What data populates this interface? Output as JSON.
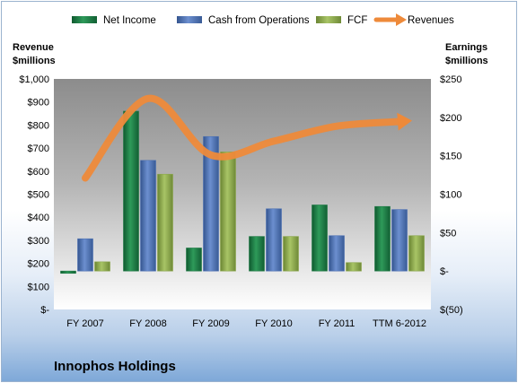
{
  "company_name": "Innophos Holdings",
  "colors": {
    "net_income": "#1e7a45",
    "cash_from_operations": "#4a6fb3",
    "fcf": "#8aa64a",
    "revenues": "#ee8a3a",
    "plot_background_top": "#8c8c8c",
    "plot_background_bottom": "#ffffff"
  },
  "chart_data": {
    "type": "bar",
    "categories": [
      "FY 2007",
      "FY 2008",
      "FY 2009",
      "FY 2010",
      "FY 2011",
      "TTM 6-2012"
    ],
    "left_axis": {
      "title": "Revenue $millions",
      "title_lines": [
        "Revenue",
        "$millions"
      ],
      "range": [
        0,
        1000
      ],
      "ticks": [
        "$-",
        "$100",
        "$200",
        "$300",
        "$400",
        "$500",
        "$600",
        "$700",
        "$800",
        "$900",
        "$1,000"
      ]
    },
    "right_axis": {
      "title": "Earnings $millions",
      "title_lines": [
        "Earnings",
        "$millions"
      ],
      "range": [
        -50,
        250
      ],
      "ticks": [
        "$(50)",
        "$-",
        "$50",
        "$100",
        "$150",
        "$200",
        "$250"
      ]
    },
    "series": [
      {
        "name": "Net Income",
        "type": "bar",
        "axis": "right",
        "values": [
          -3,
          208,
          30,
          45,
          86,
          84
        ]
      },
      {
        "name": "Cash from Operations",
        "type": "bar",
        "axis": "right",
        "values": [
          42,
          144,
          175,
          81,
          46,
          80
        ]
      },
      {
        "name": "FCF",
        "type": "bar",
        "axis": "right",
        "values": [
          12,
          126,
          155,
          45,
          11,
          46
        ]
      },
      {
        "name": "Revenues",
        "type": "line",
        "axis": "left",
        "values": [
          570,
          915,
          670,
          730,
          795,
          815
        ]
      }
    ],
    "legend_position": "top",
    "grid": false
  }
}
